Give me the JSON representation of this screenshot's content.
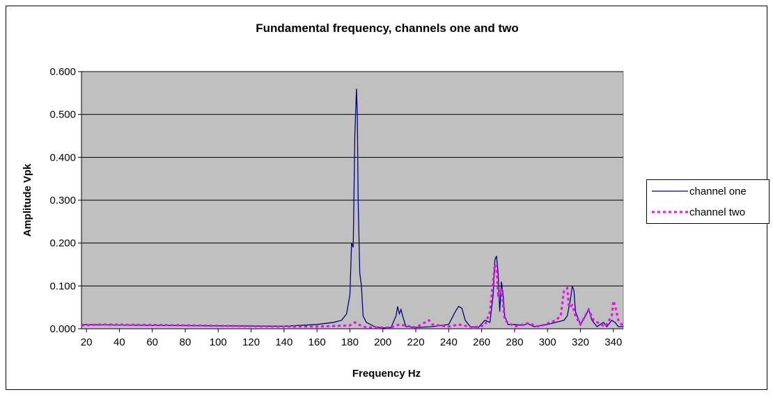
{
  "chart_data": {
    "type": "line",
    "title": "Fundamental frequency, channels one and two",
    "x_label": "Frequency Hz",
    "y_label": "Amplitude Vpk",
    "xlim": [
      17,
      346
    ],
    "ylim": [
      0,
      0.6
    ],
    "xticks": [
      20,
      40,
      60,
      80,
      100,
      120,
      140,
      160,
      180,
      200,
      220,
      240,
      260,
      280,
      300,
      320,
      340
    ],
    "yticks": [
      {
        "value": 0,
        "label": "0.000"
      },
      {
        "value": 0.1,
        "label": "0.100"
      },
      {
        "value": 0.2,
        "label": "0.200"
      },
      {
        "value": 0.3,
        "label": "0.300"
      },
      {
        "value": 0.4,
        "label": "0.400"
      },
      {
        "value": 0.5,
        "label": "0.500"
      },
      {
        "value": 0.6,
        "label": "0.600"
      }
    ],
    "grid": true,
    "legend": "right",
    "background": "#c0c0c0",
    "series": [
      {
        "name": "channel one",
        "color": "#000080",
        "dash": false,
        "x": [
          17,
          30,
          60,
          100,
          140,
          160,
          170,
          175,
          178,
          180,
          181,
          182,
          183,
          184,
          184.5,
          185,
          186,
          187,
          188,
          190,
          195,
          200,
          205,
          208,
          209,
          210,
          211,
          212,
          214,
          220,
          230,
          240,
          244,
          246,
          248,
          250,
          253,
          258,
          262,
          265,
          267,
          268,
          269,
          270,
          271,
          272,
          273,
          274,
          276,
          280,
          285,
          288,
          292,
          300,
          305,
          310,
          312,
          314,
          315,
          316,
          317,
          320,
          323,
          325,
          327,
          330,
          334,
          336,
          339,
          341,
          343,
          346
        ],
        "values": [
          0.01,
          0.009,
          0.008,
          0.007,
          0.006,
          0.01,
          0.015,
          0.02,
          0.035,
          0.08,
          0.2,
          0.19,
          0.45,
          0.56,
          0.5,
          0.3,
          0.13,
          0.1,
          0.03,
          0.015,
          0.005,
          0.002,
          0.003,
          0.03,
          0.052,
          0.035,
          0.045,
          0.03,
          0.005,
          0.003,
          0.005,
          0.01,
          0.04,
          0.052,
          0.048,
          0.02,
          0.005,
          0.003,
          0.02,
          0.015,
          0.08,
          0.16,
          0.17,
          0.13,
          0.04,
          0.11,
          0.08,
          0.03,
          0.01,
          0.01,
          0.008,
          0.012,
          0.005,
          0.01,
          0.015,
          0.02,
          0.03,
          0.07,
          0.1,
          0.09,
          0.04,
          0.01,
          0.03,
          0.045,
          0.02,
          0.005,
          0.015,
          0.005,
          0.02,
          0.015,
          0.005,
          0.005
        ]
      },
      {
        "name": "channel two",
        "color": "#ff00ff",
        "dash": true,
        "x": [
          17,
          30,
          60,
          100,
          140,
          160,
          180,
          183,
          185,
          190,
          205,
          210,
          220,
          228,
          230,
          240,
          246,
          255,
          262,
          265,
          268,
          269,
          270,
          272,
          274,
          280,
          288,
          295,
          305,
          308,
          310,
          312,
          313,
          315,
          317,
          320,
          325,
          328,
          335,
          339,
          340,
          341,
          343,
          346
        ],
        "values": [
          0.008,
          0.01,
          0.009,
          0.007,
          0.005,
          0.005,
          0.008,
          0.015,
          0.01,
          0.003,
          0.003,
          0.01,
          0.003,
          0.02,
          0.01,
          0.005,
          0.01,
          0.003,
          0.008,
          0.04,
          0.15,
          0.14,
          0.08,
          0.09,
          0.02,
          0.005,
          0.013,
          0.005,
          0.02,
          0.03,
          0.09,
          0.095,
          0.05,
          0.055,
          0.03,
          0.01,
          0.045,
          0.02,
          0.005,
          0.03,
          0.065,
          0.055,
          0.02,
          0.005
        ]
      }
    ]
  }
}
